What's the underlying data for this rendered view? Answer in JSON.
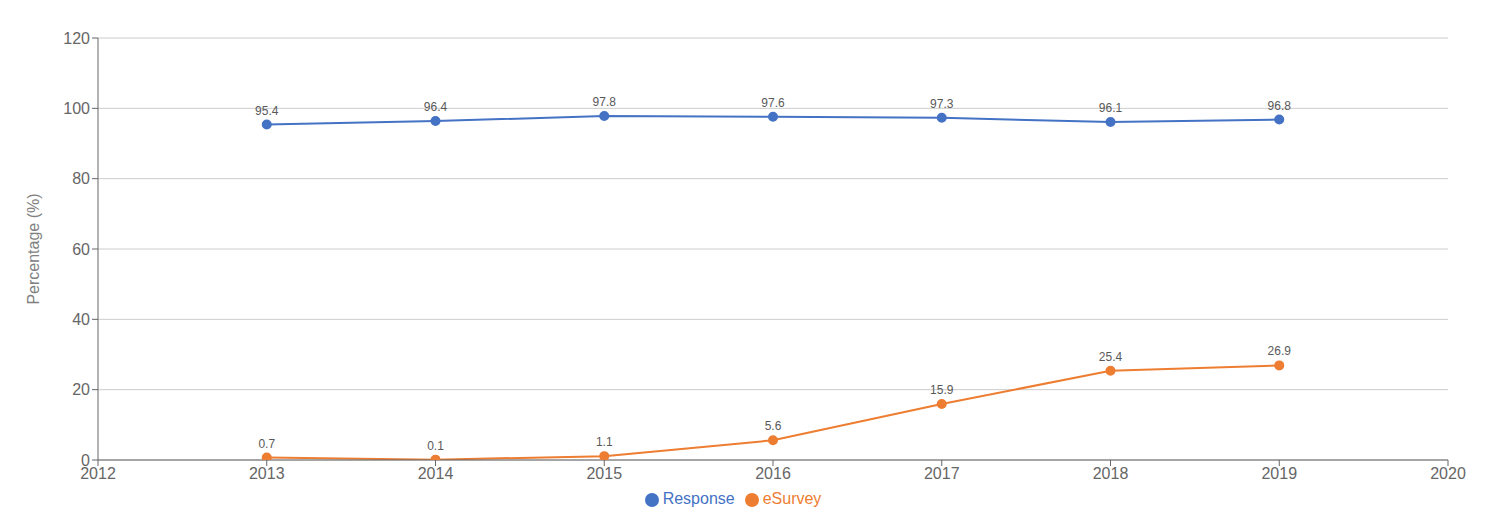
{
  "chart_data": {
    "type": "line",
    "x": [
      2013,
      2014,
      2015,
      2016,
      2017,
      2018,
      2019
    ],
    "series": [
      {
        "name": "Response",
        "color": "#4472C4",
        "values": [
          95.4,
          96.4,
          97.8,
          97.6,
          97.3,
          96.1,
          96.8
        ]
      },
      {
        "name": "eSurvey",
        "color": "#ED7D31",
        "values": [
          0.7,
          0.1,
          1.1,
          5.6,
          15.9,
          25.4,
          26.9
        ]
      }
    ],
    "ylabel": "Percentage (%)",
    "xlim": [
      2012,
      2020
    ],
    "xticks": [
      2012,
      2013,
      2014,
      2015,
      2016,
      2017,
      2018,
      2019,
      2020
    ],
    "ylim": [
      0,
      120
    ],
    "yticks": [
      0,
      20,
      40,
      60,
      80,
      100,
      120
    ],
    "grid": true,
    "legend": "bottom",
    "data_labels": true,
    "marker": "circle"
  }
}
